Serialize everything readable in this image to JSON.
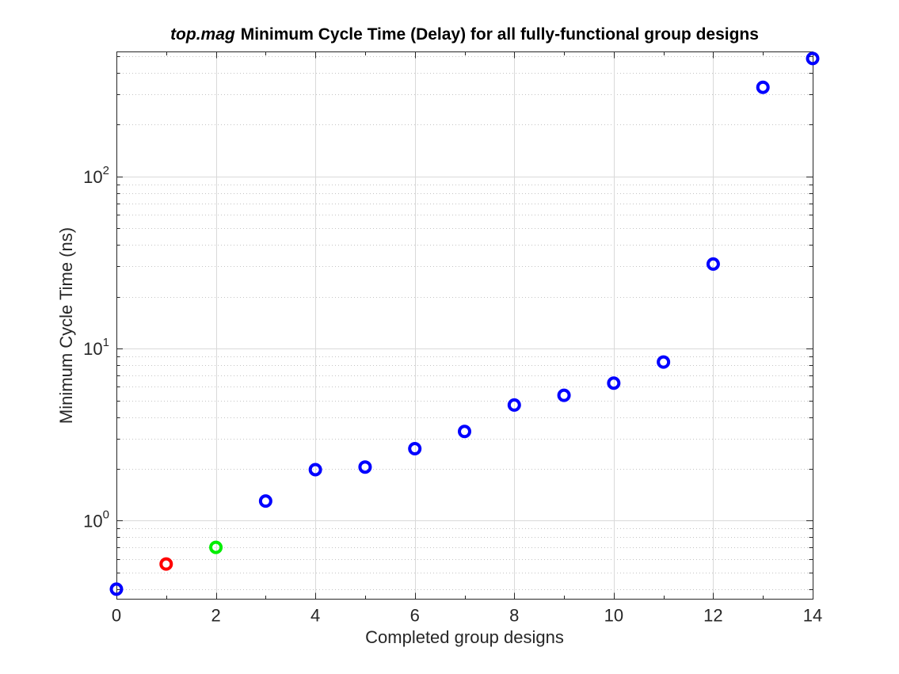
{
  "figure": {
    "title_prefix_italic": "top.mag",
    "title_rest": "Minimum Cycle Time (Delay) for all fully-functional group designs"
  },
  "chart_data": {
    "type": "scatter",
    "title": "top.mag Minimum Cycle Time (Delay) for all fully-functional group designs",
    "xlabel": "Completed group designs",
    "ylabel": "Minimum Cycle Time (ns)",
    "x_scale": "linear",
    "y_scale": "log",
    "xlim": [
      0,
      14
    ],
    "ylim": [
      0.35,
      530
    ],
    "x_major_ticks": [
      0,
      2,
      4,
      6,
      8,
      10,
      12,
      14
    ],
    "x_minor_ticks": [
      1,
      3,
      5,
      7,
      9,
      11,
      13
    ],
    "y_major_ticks": [
      {
        "value": 1,
        "base": "10",
        "exponent": "0"
      },
      {
        "value": 10,
        "base": "10",
        "exponent": "1"
      },
      {
        "value": 100,
        "base": "10",
        "exponent": "2"
      }
    ],
    "y_minor_ticks": [
      0.4,
      0.5,
      0.6,
      0.7,
      0.8,
      0.9,
      2,
      3,
      4,
      5,
      6,
      7,
      8,
      9,
      20,
      30,
      40,
      50,
      60,
      70,
      80,
      90,
      200,
      300,
      400,
      500
    ],
    "grid": {
      "x_major": true,
      "y_major": true,
      "y_minor_dotted": true,
      "legend": "none",
      "box": true
    },
    "points": [
      {
        "x": 0,
        "y": 0.4,
        "color": "#0000ff"
      },
      {
        "x": 1,
        "y": 0.56,
        "color": "#ff0000"
      },
      {
        "x": 2,
        "y": 0.7,
        "color": "#00ee00"
      },
      {
        "x": 3,
        "y": 1.3,
        "color": "#0000ff"
      },
      {
        "x": 4,
        "y": 1.98,
        "color": "#0000ff"
      },
      {
        "x": 5,
        "y": 2.05,
        "color": "#0000ff"
      },
      {
        "x": 6,
        "y": 2.62,
        "color": "#0000ff"
      },
      {
        "x": 7,
        "y": 3.3,
        "color": "#0000ff"
      },
      {
        "x": 8,
        "y": 4.7,
        "color": "#0000ff"
      },
      {
        "x": 9,
        "y": 5.35,
        "color": "#0000ff"
      },
      {
        "x": 10,
        "y": 6.3,
        "color": "#0000ff"
      },
      {
        "x": 11,
        "y": 8.35,
        "color": "#0000ff"
      },
      {
        "x": 12,
        "y": 31,
        "color": "#0000ff"
      },
      {
        "x": 13,
        "y": 330,
        "color": "#0000ff"
      },
      {
        "x": 14,
        "y": 485,
        "color": "#0000ff"
      }
    ],
    "marker": {
      "shape": "open-circle",
      "radius_px": 6.5,
      "stroke_width_px": 4
    },
    "colors": {
      "background": "#ffffff",
      "axis": "#262626",
      "tick_label": "#262626",
      "title": "#000000",
      "grid_major": "#d9d9d9",
      "grid_minor": "#c4c4c4"
    }
  }
}
